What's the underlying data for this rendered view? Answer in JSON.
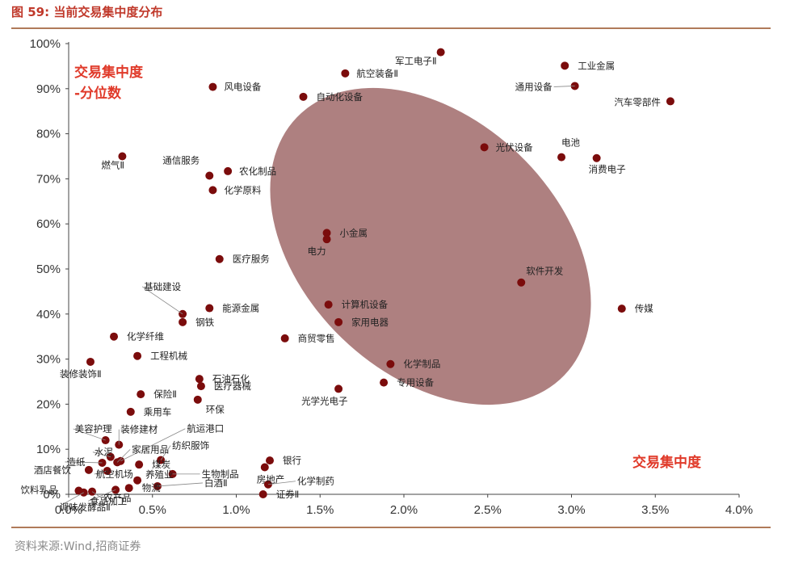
{
  "header": {
    "title": "图 59:  当前交易集中度分布"
  },
  "footer": {
    "source": "资料来源:Wind,招商证券"
  },
  "chart_data": {
    "type": "scatter",
    "xlim": [
      0,
      0.04
    ],
    "ylim": [
      0,
      1
    ],
    "x_ticks": [
      "0.0%",
      "0.5%",
      "1.0%",
      "1.5%",
      "2.0%",
      "2.5%",
      "3.0%",
      "3.5%",
      "4.0%"
    ],
    "y_ticks": [
      "0%",
      "10%",
      "20%",
      "30%",
      "40%",
      "50%",
      "60%",
      "70%",
      "80%",
      "90%",
      "100%"
    ],
    "ylabel": [
      "交易集中度",
      "-分位数"
    ],
    "xlabel": "交易集中度",
    "grid": false,
    "highlight": "ellipse",
    "colors": {
      "point": "#7b0c0c",
      "ellipse": "#a06a6a",
      "label_red": "#e03a2a"
    },
    "points": [
      {
        "name": "军工电子Ⅱ",
        "x": 0.0222,
        "y": 0.981
      },
      {
        "name": "工业金属",
        "x": 0.0296,
        "y": 0.951
      },
      {
        "name": "航空装备Ⅱ",
        "x": 0.0165,
        "y": 0.934
      },
      {
        "name": "通用设备",
        "x": 0.0302,
        "y": 0.906
      },
      {
        "name": "风电设备",
        "x": 0.0086,
        "y": 0.904
      },
      {
        "name": "汽车零部件",
        "x": 0.0359,
        "y": 0.872
      },
      {
        "name": "自动化设备",
        "x": 0.014,
        "y": 0.882
      },
      {
        "name": "光伏设备",
        "x": 0.0248,
        "y": 0.77
      },
      {
        "name": "电池",
        "x": 0.0294,
        "y": 0.748
      },
      {
        "name": "消费电子",
        "x": 0.0315,
        "y": 0.746
      },
      {
        "name": "燃气Ⅱ",
        "x": 0.0032,
        "y": 0.75
      },
      {
        "name": "通信服务",
        "x": 0.0084,
        "y": 0.707
      },
      {
        "name": "农化制品",
        "x": 0.0095,
        "y": 0.717
      },
      {
        "name": "化学原料",
        "x": 0.0086,
        "y": 0.675
      },
      {
        "name": "小金属",
        "x": 0.0154,
        "y": 0.58
      },
      {
        "name": "电力",
        "x": 0.0154,
        "y": 0.566
      },
      {
        "name": "医疗服务",
        "x": 0.009,
        "y": 0.522
      },
      {
        "name": "软件开发",
        "x": 0.027,
        "y": 0.47
      },
      {
        "name": "传媒",
        "x": 0.033,
        "y": 0.412
      },
      {
        "name": "基础建设",
        "x": 0.0068,
        "y": 0.4
      },
      {
        "name": "能源金属",
        "x": 0.0084,
        "y": 0.413
      },
      {
        "name": "计算机设备",
        "x": 0.0155,
        "y": 0.421
      },
      {
        "name": "钢铁",
        "x": 0.0068,
        "y": 0.382
      },
      {
        "name": "家用电器",
        "x": 0.0161,
        "y": 0.382
      },
      {
        "name": "化学纤维",
        "x": 0.0027,
        "y": 0.35
      },
      {
        "name": "商贸零售",
        "x": 0.0129,
        "y": 0.346
      },
      {
        "name": "工程机械",
        "x": 0.0041,
        "y": 0.307
      },
      {
        "name": "装修装饰Ⅱ",
        "x": 0.0013,
        "y": 0.294
      },
      {
        "name": "化学制品",
        "x": 0.0192,
        "y": 0.289
      },
      {
        "name": "石油石化",
        "x": 0.0078,
        "y": 0.256
      },
      {
        "name": "专用设备",
        "x": 0.0188,
        "y": 0.248
      },
      {
        "name": "医疗器械",
        "x": 0.0079,
        "y": 0.24
      },
      {
        "name": "光学光电子",
        "x": 0.0161,
        "y": 0.234
      },
      {
        "name": "保险Ⅱ",
        "x": 0.0043,
        "y": 0.222
      },
      {
        "name": "环保",
        "x": 0.0077,
        "y": 0.21
      },
      {
        "name": "乘用车",
        "x": 0.0037,
        "y": 0.183
      },
      {
        "name": "美容护理",
        "x": 0.0022,
        "y": 0.12
      },
      {
        "name": "装修建材",
        "x": 0.003,
        "y": 0.11
      },
      {
        "name": "水泥",
        "x": 0.0025,
        "y": 0.083
      },
      {
        "name": "航运港口",
        "x": 0.0031,
        "y": 0.074
      },
      {
        "name": "家居用品",
        "x": 0.0029,
        "y": 0.071
      },
      {
        "name": "造纸",
        "x": 0.002,
        "y": 0.07
      },
      {
        "name": "纺织服饰",
        "x": 0.0055,
        "y": 0.076
      },
      {
        "name": "煤炭",
        "x": 0.0042,
        "y": 0.066
      },
      {
        "name": "银行",
        "x": 0.012,
        "y": 0.075
      },
      {
        "name": "房地产",
        "x": 0.0117,
        "y": 0.06
      },
      {
        "name": "酒店餐饮",
        "x": 0.0012,
        "y": 0.054
      },
      {
        "name": "航空机场",
        "x": 0.0023,
        "y": 0.052
      },
      {
        "name": "生物制品",
        "x": 0.0062,
        "y": 0.045
      },
      {
        "name": "养殖业",
        "x": 0.0041,
        "y": 0.031
      },
      {
        "name": "化学制药",
        "x": 0.0119,
        "y": 0.022
      },
      {
        "name": "白酒Ⅱ",
        "x": 0.0053,
        "y": 0.018
      },
      {
        "name": "饮料乳品",
        "x": 0.0006,
        "y": 0.008
      },
      {
        "name": "物流",
        "x": 0.0036,
        "y": 0.014
      },
      {
        "name": "食品加工",
        "x": 0.0028,
        "y": 0.01
      },
      {
        "name": "调味发酵品Ⅱ",
        "x": 0.0009,
        "y": 0.004
      },
      {
        "name": "农产品",
        "x": 0.0014,
        "y": 0.006
      },
      {
        "name": "证券Ⅱ",
        "x": 0.0116,
        "y": 0.0
      }
    ]
  }
}
